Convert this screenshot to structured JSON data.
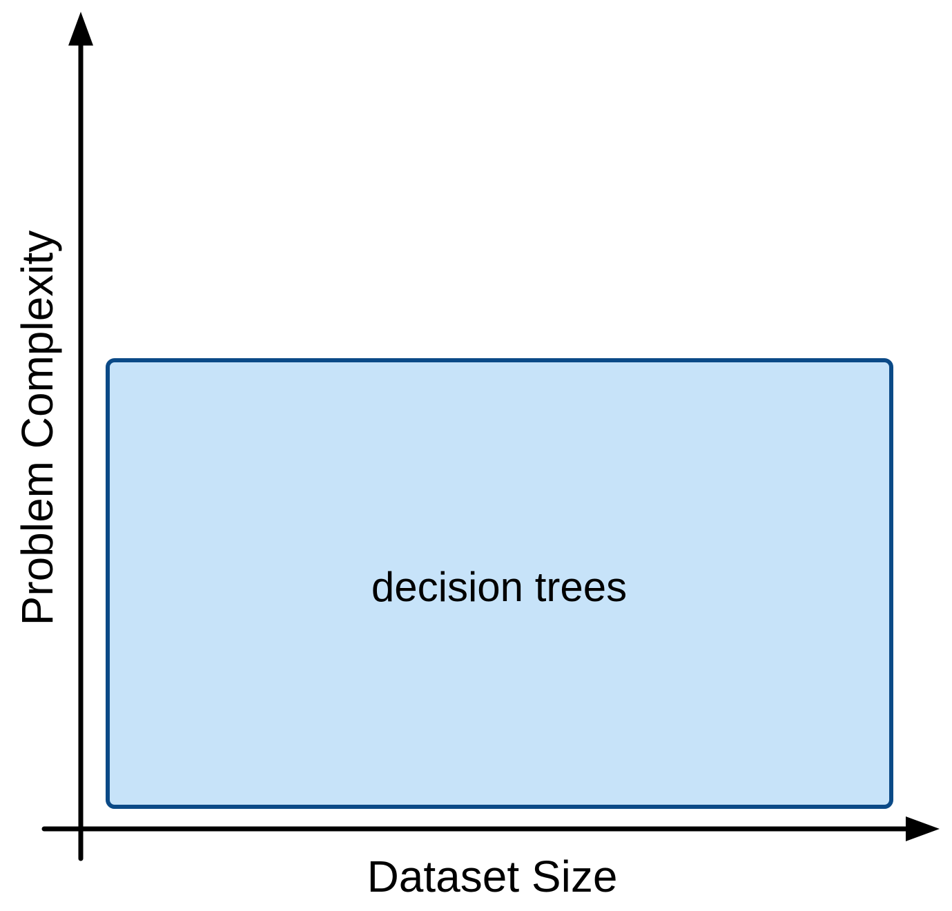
{
  "axes": {
    "x_label": "Dataset Size",
    "y_label": "Problem Complexity"
  },
  "regions": [
    {
      "label": "decision trees",
      "fill_color": "#c7e3f9",
      "border_color": "#0b4a87"
    }
  ],
  "colors": {
    "axis": "#000000",
    "background": "#ffffff"
  }
}
